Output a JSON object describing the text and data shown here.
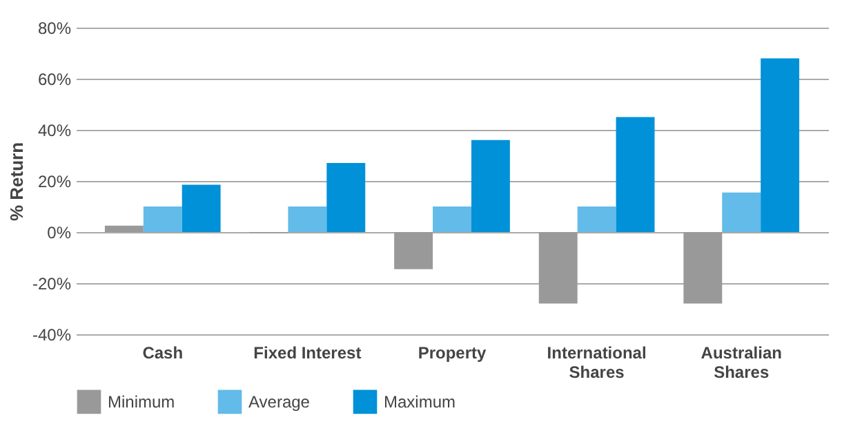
{
  "chart_data": {
    "type": "bar",
    "ylabel": "% Return",
    "categories": [
      "Cash",
      "Fixed Interest",
      "Property",
      "International Shares",
      "Australian Shares"
    ],
    "series": [
      {
        "name": "Minimum",
        "color": "#999999",
        "values": [
          2.5,
          -0.5,
          -14.5,
          -28,
          -28
        ]
      },
      {
        "name": "Average",
        "color": "#62bbe8",
        "values": [
          10,
          10,
          10,
          10,
          15.5
        ]
      },
      {
        "name": "Maximum",
        "color": "#0091d8",
        "values": [
          18.5,
          27,
          36,
          45,
          68
        ]
      }
    ],
    "ylim": [
      -40,
      80
    ],
    "yticks": [
      {
        "value": -40,
        "label": "-40%"
      },
      {
        "value": -20,
        "label": "-20%"
      },
      {
        "value": 0,
        "label": "0%"
      },
      {
        "value": 20,
        "label": "20%"
      },
      {
        "value": 40,
        "label": "40%"
      },
      {
        "value": 60,
        "label": "60%"
      },
      {
        "value": 80,
        "label": "80%"
      }
    ],
    "grid": "y",
    "legend": "bottom left"
  }
}
